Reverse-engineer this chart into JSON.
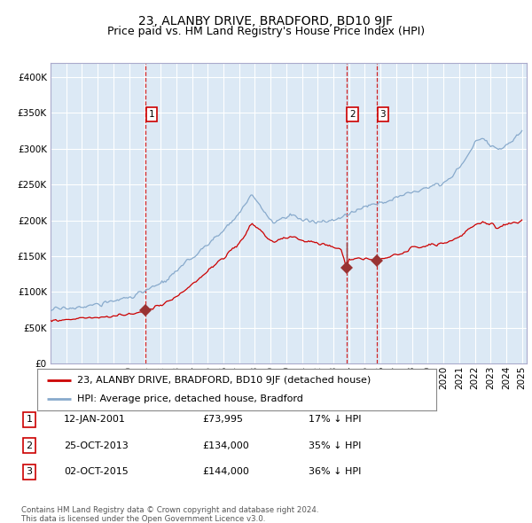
{
  "title": "23, ALANBY DRIVE, BRADFORD, BD10 9JF",
  "subtitle": "Price paid vs. HM Land Registry's House Price Index (HPI)",
  "ylim": [
    0,
    420000
  ],
  "yticks": [
    0,
    50000,
    100000,
    150000,
    200000,
    250000,
    300000,
    350000,
    400000
  ],
  "ytick_labels": [
    "£0",
    "£50K",
    "£100K",
    "£150K",
    "£200K",
    "£250K",
    "£300K",
    "£350K",
    "£400K"
  ],
  "bg_color": "#dce9f5",
  "grid_color": "#ffffff",
  "red_line_color": "#cc0000",
  "blue_line_color": "#88aacc",
  "sale_marker_color": "#993333",
  "vline_color": "#cc0000",
  "sale1_year": 2001.04,
  "sale1_price": 73995,
  "sale2_year": 2013.82,
  "sale2_price": 134000,
  "sale3_year": 2015.75,
  "sale3_price": 144000,
  "legend_label_red": "23, ALANBY DRIVE, BRADFORD, BD10 9JF (detached house)",
  "legend_label_blue": "HPI: Average price, detached house, Bradford",
  "table_rows": [
    {
      "num": "1",
      "date": "12-JAN-2001",
      "price": "£73,995",
      "hpi": "17% ↓ HPI"
    },
    {
      "num": "2",
      "date": "25-OCT-2013",
      "price": "£134,000",
      "hpi": "35% ↓ HPI"
    },
    {
      "num": "3",
      "date": "02-OCT-2015",
      "price": "£144,000",
      "hpi": "36% ↓ HPI"
    }
  ],
  "footer": "Contains HM Land Registry data © Crown copyright and database right 2024.\nThis data is licensed under the Open Government Licence v3.0.",
  "title_fontsize": 10,
  "subtitle_fontsize": 9,
  "tick_fontsize": 7.5,
  "legend_fontsize": 8
}
